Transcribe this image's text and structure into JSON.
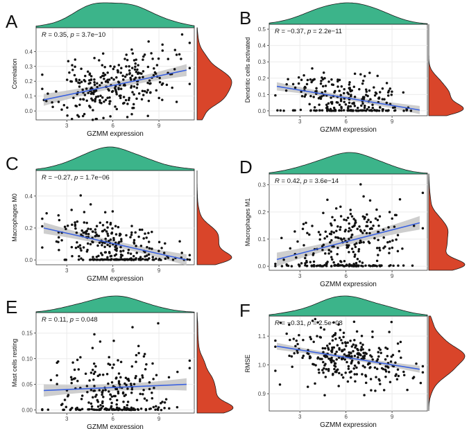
{
  "colors": {
    "point": "#111111",
    "fit_line": "#3b62e0",
    "ci_band": "#bdbdbd",
    "top_density": "#3cb48a",
    "right_density": "#d9452a",
    "grid": "#ebebeb",
    "panel_border": "#333333"
  },
  "chart_data": [
    {
      "type": "scatter",
      "panel_label": "A",
      "annotation": "R = 0.35, p = 3.7e−10",
      "annotation_parts": [
        "R",
        " = 0.35, ",
        "p",
        " = 3.7e−10"
      ],
      "xlabel": "GZMM expression",
      "ylabel": "Correlation",
      "xlim": [
        1,
        11.3
      ],
      "ylim": [
        -0.06,
        0.56
      ],
      "xticks": [
        3,
        6,
        9
      ],
      "yticks": [
        0.0,
        0.1,
        0.2,
        0.3,
        0.4
      ],
      "ytick_labels": [
        "0.0",
        "0.1",
        "0.2",
        "0.3",
        "0.4"
      ],
      "fit": {
        "x0": 1.5,
        "y0": 0.075,
        "x1": 10.8,
        "y1": 0.275,
        "ci": 0.04
      },
      "n_points": 280,
      "x_center": 6.0,
      "x_spread": 1.9,
      "y_center": 0.19,
      "y_spread": 0.1,
      "y_floor": null,
      "y_cap": 0.54,
      "seed": 11
    },
    {
      "type": "scatter",
      "panel_label": "B",
      "annotation": "R = −0.37, p = 2.2e−11",
      "annotation_parts": [
        "R",
        " = −0.37, ",
        "p",
        " = 2.2e−11"
      ],
      "xlabel": "GZMM expression",
      "ylabel": "Dendritic cells activated",
      "xlim": [
        1,
        11.3
      ],
      "ylim": [
        -0.03,
        0.53
      ],
      "xticks": [
        3,
        6,
        9
      ],
      "yticks": [
        0.0,
        0.1,
        0.2,
        0.3,
        0.4,
        0.5
      ],
      "ytick_labels": [
        "0.0",
        "0.1",
        "0.2",
        "0.3",
        "0.4",
        "0.5"
      ],
      "fit": {
        "x0": 1.5,
        "y0": 0.15,
        "x1": 10.8,
        "y1": 0.005,
        "ci": 0.025
      },
      "n_points": 260,
      "x_center": 6.0,
      "x_spread": 1.9,
      "y_center": 0.07,
      "y_spread": 0.07,
      "y_floor": 0.0,
      "y_cap": 0.5,
      "seed": 23
    },
    {
      "type": "scatter",
      "panel_label": "C",
      "annotation": "R = −0.27, p = 1.7e−06",
      "annotation_parts": [
        "R",
        " = −0.27, ",
        "p",
        " = 1.7e−06"
      ],
      "xlabel": "GZMM expression",
      "ylabel": "Macrophages M0",
      "xlim": [
        1,
        11.3
      ],
      "ylim": [
        -0.03,
        0.56
      ],
      "xticks": [
        3,
        6,
        9
      ],
      "yticks": [
        0.0,
        0.2,
        0.4
      ],
      "ytick_labels": [
        "0.0",
        "0.2",
        "0.4"
      ],
      "fit": {
        "x0": 1.5,
        "y0": 0.2,
        "x1": 10.8,
        "y1": 0.0,
        "ci": 0.035
      },
      "n_points": 270,
      "x_center": 6.0,
      "x_spread": 1.9,
      "y_center": 0.07,
      "y_spread": 0.09,
      "y_floor": 0.0,
      "y_cap": 0.53,
      "seed": 37
    },
    {
      "type": "scatter",
      "panel_label": "D",
      "annotation": "R = 0.42, p = 3.6e−14",
      "annotation_parts": [
        "R",
        " = 0.42, ",
        "p",
        " = 3.6e−14"
      ],
      "xlabel": "GZMM expression",
      "ylabel": "Macrophages M1",
      "xlim": [
        1,
        11.3
      ],
      "ylim": [
        -0.015,
        0.34
      ],
      "xticks": [
        3,
        6,
        9
      ],
      "yticks": [
        0.0,
        0.1,
        0.2,
        0.3
      ],
      "ytick_labels": [
        "0.0",
        "0.1",
        "0.2",
        "0.3"
      ],
      "fit": {
        "x0": 1.5,
        "y0": 0.025,
        "x1": 10.8,
        "y1": 0.16,
        "ci": 0.025
      },
      "n_points": 280,
      "x_center": 6.0,
      "x_spread": 1.9,
      "y_center": 0.09,
      "y_spread": 0.065,
      "y_floor": 0.0,
      "y_cap": 0.33,
      "seed": 53
    },
    {
      "type": "scatter",
      "panel_label": "E",
      "annotation": "R = 0.11, p = 0.048",
      "annotation_parts": [
        "R",
        " = 0.11, ",
        "p",
        " = 0.048"
      ],
      "xlabel": "GZMM expression",
      "ylabel": "Mast cells resting",
      "xlim": [
        1,
        11.3
      ],
      "ylim": [
        -0.006,
        0.19
      ],
      "xticks": [
        3,
        6,
        9
      ],
      "yticks": [
        0.0,
        0.05,
        0.1,
        0.15
      ],
      "ytick_labels": [
        "0.00",
        "0.05",
        "0.10",
        "0.15"
      ],
      "fit": {
        "x0": 1.5,
        "y0": 0.038,
        "x1": 10.8,
        "y1": 0.05,
        "ci": 0.012
      },
      "n_points": 260,
      "x_center": 6.0,
      "x_spread": 1.9,
      "y_center": 0.04,
      "y_spread": 0.04,
      "y_floor": 0.0,
      "y_cap": 0.185,
      "seed": 71
    },
    {
      "type": "scatter",
      "panel_label": "F",
      "annotation": "R = −0.31, p = 2.5e−08",
      "annotation_parts": [
        "R",
        " = −0.31, ",
        "p",
        " = 2.5e−08"
      ],
      "xlabel": "GZMM expression",
      "ylabel": "RMSE",
      "xlim": [
        1,
        11.3
      ],
      "ylim": [
        0.84,
        1.17
      ],
      "xticks": [
        3,
        6,
        9
      ],
      "yticks": [
        0.9,
        1.0,
        1.1
      ],
      "ytick_labels": [
        "0.9",
        "1.0",
        "1.1"
      ],
      "fit": {
        "x0": 1.5,
        "y0": 1.065,
        "x1": 10.8,
        "y1": 0.985,
        "ci": 0.012
      },
      "n_points": 280,
      "x_center": 6.0,
      "x_spread": 1.9,
      "y_center": 1.025,
      "y_spread": 0.05,
      "y_floor": null,
      "y_cap": 1.16,
      "seed": 89
    }
  ]
}
